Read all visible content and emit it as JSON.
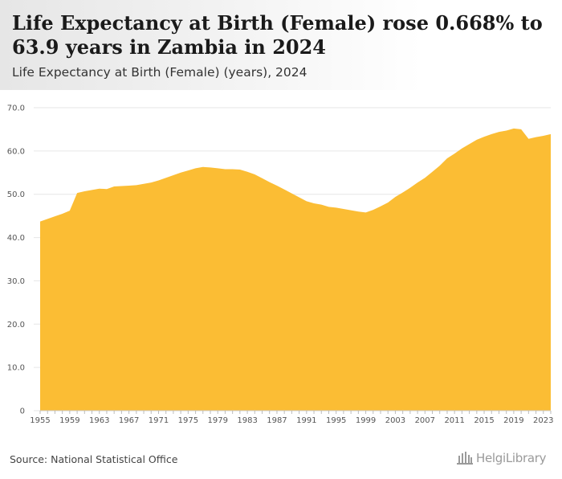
{
  "header": {
    "title": "Life Expectancy at Birth (Female) rose 0.668% to 63.9 years in Zambia in 2024",
    "subtitle": "Life Expectancy at Birth (Female) (years), 2024"
  },
  "footer": {
    "source": "Source: National Statistical Office",
    "logo_text": "HelgiLibrary"
  },
  "colors": {
    "area_fill": "#fbbd34",
    "grid": "#e6e6e6",
    "header_bg": "#ebebeb"
  },
  "chart_data": {
    "type": "area",
    "title": "Life Expectancy at Birth (Female) rose 0.668% to 63.9 years in Zambia in 2024",
    "subtitle": "Life Expectancy at Birth (Female) (years), 2024",
    "xlabel": "",
    "ylabel": "",
    "ylim": [
      0,
      70
    ],
    "yticks": [
      "0",
      "10.0",
      "20.0",
      "30.0",
      "40.0",
      "50.0",
      "60.0",
      "70.0"
    ],
    "xtick_labels": [
      "1955",
      "1959",
      "1963",
      "1967",
      "1971",
      "1975",
      "1979",
      "1983",
      "1987",
      "1991",
      "1995",
      "1999",
      "2003",
      "2007",
      "2011",
      "2015",
      "2019",
      "2023"
    ],
    "grid": true,
    "legend": "none",
    "series": [
      {
        "x": [
          1955,
          1956,
          1957,
          1958,
          1959,
          1960,
          1961,
          1962,
          1963,
          1964,
          1965,
          1966,
          1967,
          1968,
          1969,
          1970,
          1971,
          1972,
          1973,
          1974,
          1975,
          1976,
          1977,
          1978,
          1979,
          1980,
          1981,
          1982,
          1983,
          1984,
          1985,
          1986,
          1987,
          1988,
          1989,
          1990,
          1991,
          1992,
          1993,
          1994,
          1995,
          1996,
          1997,
          1998,
          1999,
          2000,
          2001,
          2002,
          2003,
          2004,
          2005,
          2006,
          2007,
          2008,
          2009,
          2010,
          2011,
          2012,
          2013,
          2014,
          2015,
          2016,
          2017,
          2018,
          2019,
          2020,
          2021,
          2022,
          2023,
          2024
        ],
        "values": [
          43.7,
          44.3,
          44.9,
          45.5,
          46.2,
          50.3,
          50.7,
          51.0,
          51.3,
          51.2,
          51.8,
          51.9,
          52.0,
          52.1,
          52.4,
          52.7,
          53.2,
          53.8,
          54.4,
          55.0,
          55.5,
          56.0,
          56.3,
          56.2,
          56.0,
          55.8,
          55.8,
          55.7,
          55.2,
          54.6,
          53.7,
          52.8,
          52.0,
          51.1,
          50.2,
          49.3,
          48.4,
          47.9,
          47.6,
          47.1,
          46.9,
          46.6,
          46.3,
          46.0,
          45.8,
          46.4,
          47.2,
          48.1,
          49.4,
          50.4,
          51.5,
          52.7,
          53.8,
          55.2,
          56.6,
          58.3,
          59.4,
          60.6,
          61.6,
          62.6,
          63.3,
          63.9,
          64.4,
          64.7,
          65.2,
          65.0,
          62.8,
          63.2,
          63.5,
          63.9
        ]
      }
    ]
  }
}
